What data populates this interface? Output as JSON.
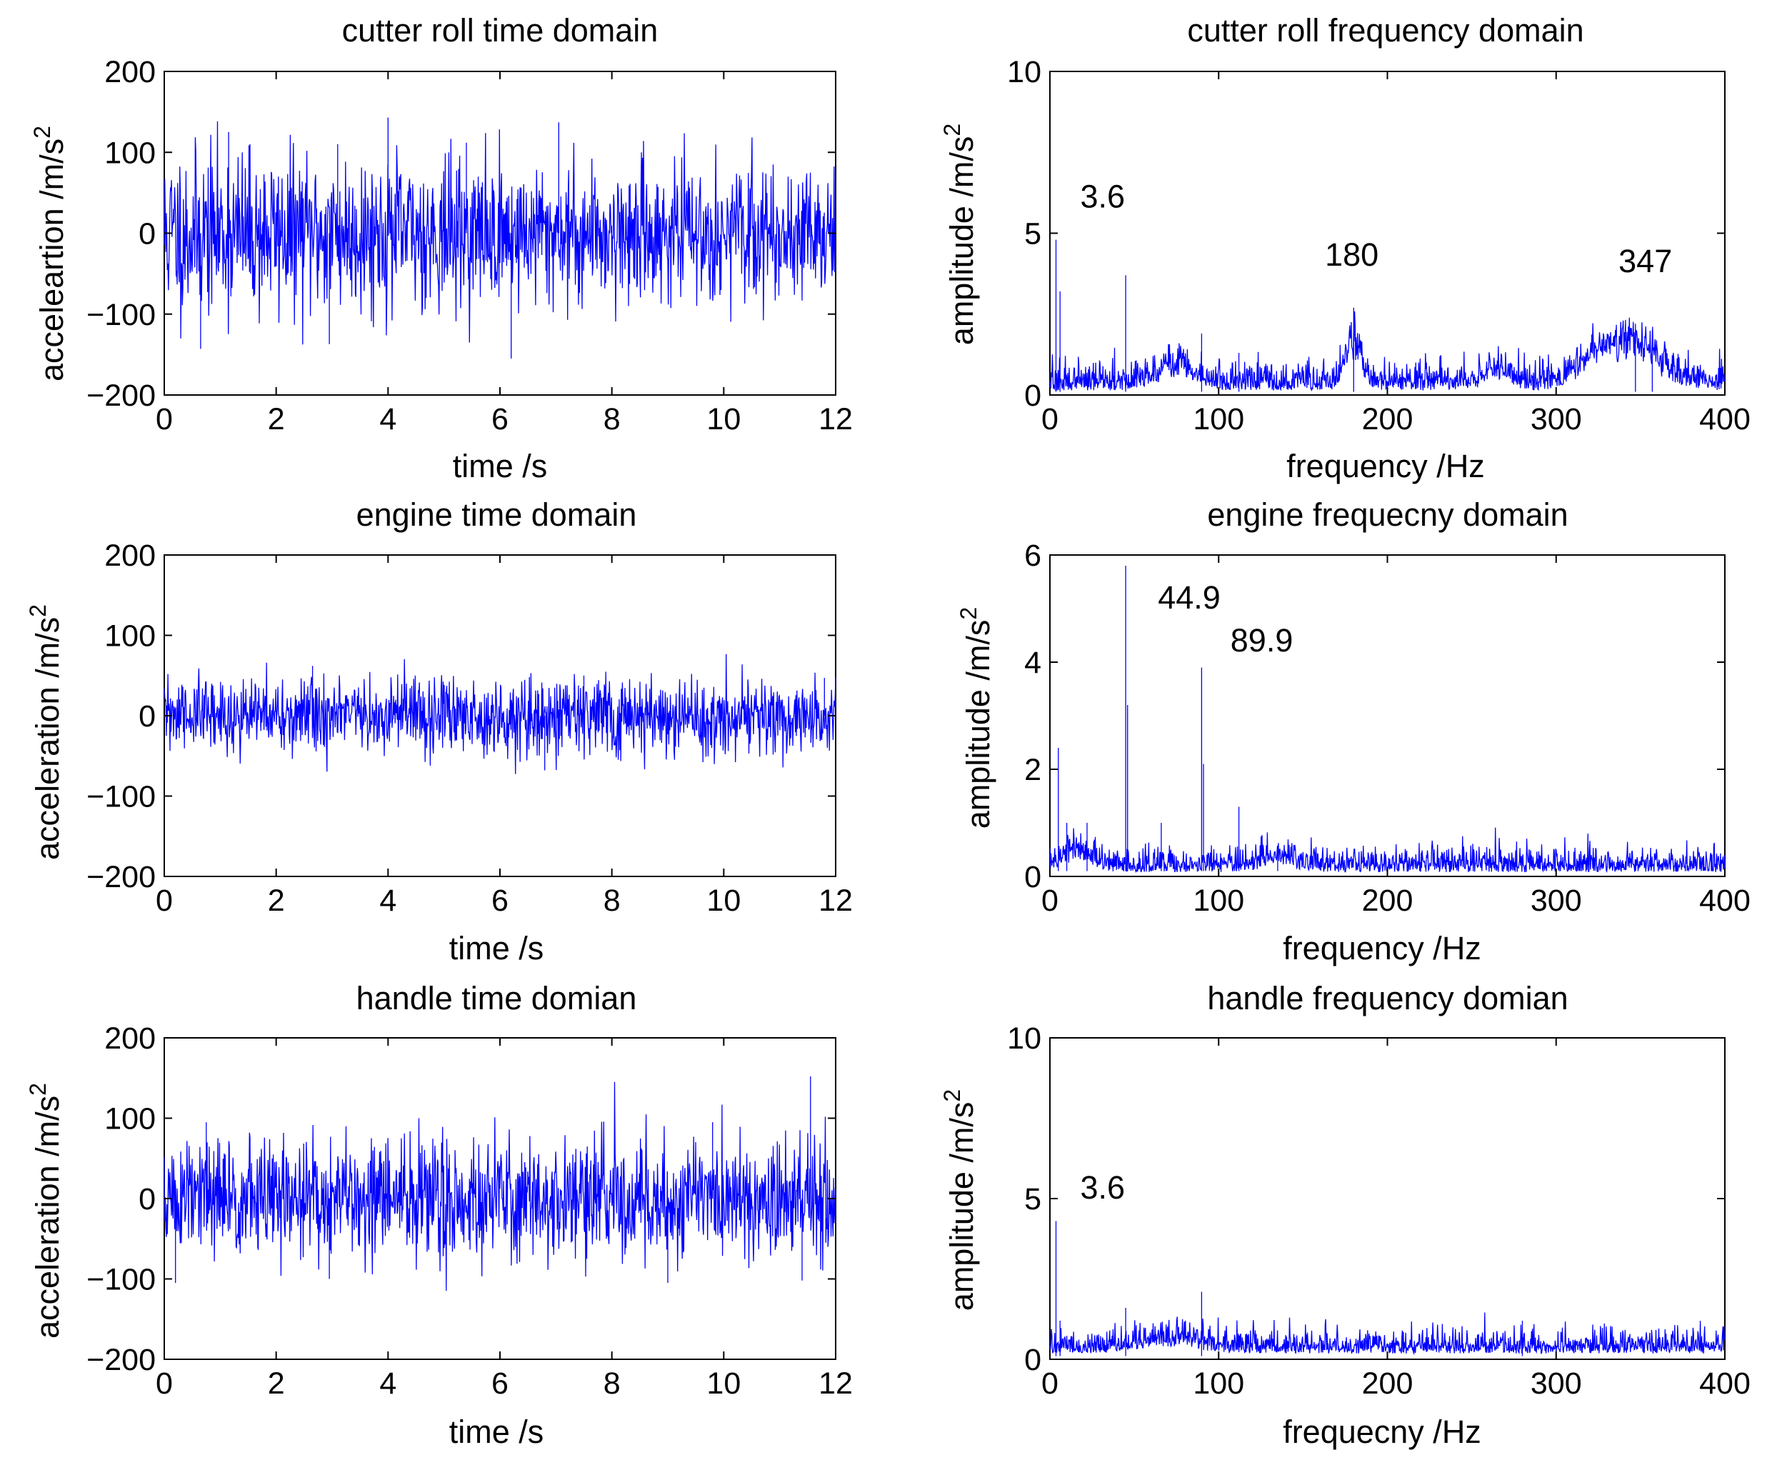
{
  "figure": {
    "background": "#ffffff",
    "series_color": "#0000ff"
  },
  "chart_data": [
    {
      "id": "cutter-roll-time",
      "type": "line",
      "title": "cutter roll time domain",
      "xlabel": "time /s",
      "ylabel": "accelear­tion /m/s",
      "ylabel_sup": "2",
      "xlim": [
        0,
        12
      ],
      "ylim": [
        -200,
        200
      ],
      "xticks": [
        0,
        2,
        4,
        6,
        8,
        10,
        12
      ],
      "yticks": [
        -200,
        -100,
        0,
        100,
        200
      ],
      "signal": {
        "kind": "time",
        "amp": 52,
        "decay": 0.05,
        "seed": 11
      },
      "spikes": [
        {
          "x": 0.65,
          "y": -143
        },
        {
          "x": 1.15,
          "y": 125
        },
        {
          "x": 2.95,
          "y": -137
        },
        {
          "x": 4.0,
          "y": 143
        },
        {
          "x": 6.2,
          "y": -155
        },
        {
          "x": 7.05,
          "y": 137
        },
        {
          "x": 3.1,
          "y": 110
        },
        {
          "x": 5.4,
          "y": 112
        }
      ],
      "annotations": []
    },
    {
      "id": "cutter-roll-freq",
      "type": "line",
      "title": "cutter roll frequency domain",
      "xlabel": "frequency /Hz",
      "ylabel": "amplitude /m/s",
      "ylabel_sup": "2",
      "xlim": [
        0,
        400
      ],
      "ylim": [
        0,
        10
      ],
      "xticks": [
        0,
        100,
        200,
        300,
        400
      ],
      "yticks": [
        0,
        5,
        10
      ],
      "signal": {
        "kind": "spectrum",
        "floor": 0.35,
        "noise": 0.4,
        "seed": 21
      },
      "bumps": [
        {
          "f": 75,
          "w": 14,
          "a": 0.6
        },
        {
          "f": 180,
          "w": 6,
          "a": 1.4
        },
        {
          "f": 345,
          "w": 22,
          "a": 1.2
        },
        {
          "f": 320,
          "w": 14,
          "a": 0.5
        },
        {
          "f": 265,
          "w": 10,
          "a": 0.4
        }
      ],
      "peaks": [
        {
          "f": 3.6,
          "a": 4.8
        },
        {
          "f": 6,
          "a": 3.2
        },
        {
          "f": 44.9,
          "a": 3.7
        },
        {
          "f": 89.9,
          "a": 1.9
        },
        {
          "f": 112,
          "a": 1.3
        },
        {
          "f": 180,
          "a": 2.7
        },
        {
          "f": 347,
          "a": 2.2
        },
        {
          "f": 357,
          "a": 2.0
        }
      ],
      "annotations": [
        {
          "text": "3.6",
          "x": 18,
          "y": 5.8
        },
        {
          "text": "180",
          "x": 163,
          "y": 4.0
        },
        {
          "text": "347",
          "x": 337,
          "y": 3.8
        }
      ]
    },
    {
      "id": "engine-time",
      "type": "line",
      "title": "engine time domain",
      "xlabel": "time /s",
      "ylabel": "acceleration /m/s",
      "ylabel_sup": "2",
      "xlim": [
        0,
        12
      ],
      "ylim": [
        -200,
        200
      ],
      "xticks": [
        0,
        2,
        4,
        6,
        8,
        10,
        12
      ],
      "yticks": [
        -200,
        -100,
        0,
        100,
        200
      ],
      "signal": {
        "kind": "time",
        "amp": 24,
        "decay": 0.0,
        "seed": 31
      },
      "spikes": [
        {
          "x": 2.65,
          "y": 62
        },
        {
          "x": 7.5,
          "y": 50
        },
        {
          "x": 6.8,
          "y": -68
        },
        {
          "x": 11.8,
          "y": 47
        }
      ],
      "annotations": []
    },
    {
      "id": "engine-freq",
      "type": "line",
      "title": "engine frequecny domain",
      "xlabel": "frequency /Hz",
      "ylabel": "amplitude /m/s",
      "ylabel_sup": "2",
      "xlim": [
        0,
        400
      ],
      "ylim": [
        0,
        6
      ],
      "xticks": [
        0,
        100,
        200,
        300,
        400
      ],
      "yticks": [
        0,
        2,
        4,
        6
      ],
      "signal": {
        "kind": "spectrum",
        "floor": 0.2,
        "noise": 0.22,
        "seed": 41
      },
      "bumps": [
        {
          "f": 15,
          "w": 12,
          "a": 0.3
        },
        {
          "f": 135,
          "w": 14,
          "a": 0.15
        }
      ],
      "peaks": [
        {
          "f": 5,
          "a": 2.4
        },
        {
          "f": 10,
          "a": 1.0
        },
        {
          "f": 22,
          "a": 1.0
        },
        {
          "f": 44.9,
          "a": 5.8
        },
        {
          "f": 46,
          "a": 3.2
        },
        {
          "f": 66,
          "a": 1.0
        },
        {
          "f": 89.9,
          "a": 3.9
        },
        {
          "f": 91,
          "a": 2.1
        },
        {
          "f": 112,
          "a": 1.3
        },
        {
          "f": 135,
          "a": 0.5
        }
      ],
      "annotations": [
        {
          "text": "44.9",
          "x": 64,
          "y": 5.0
        },
        {
          "text": "89.9",
          "x": 107,
          "y": 4.2
        }
      ]
    },
    {
      "id": "handle-time",
      "type": "line",
      "title": "handle time domian",
      "xlabel": "time /s",
      "ylabel": "acceleration /m/s",
      "ylabel_sup": "2",
      "xlim": [
        0,
        12
      ],
      "ylim": [
        -200,
        200
      ],
      "xticks": [
        0,
        2,
        4,
        6,
        8,
        10,
        12
      ],
      "yticks": [
        -200,
        -100,
        0,
        100,
        200
      ],
      "signal": {
        "kind": "time",
        "amp": 38,
        "decay": 0.0,
        "seed": 51
      },
      "spikes": [
        {
          "x": 0.2,
          "y": -105
        },
        {
          "x": 0.75,
          "y": 95
        },
        {
          "x": 2.95,
          "y": -100
        },
        {
          "x": 9.0,
          "y": -105
        },
        {
          "x": 9.8,
          "y": 95
        },
        {
          "x": 11.55,
          "y": 152
        },
        {
          "x": 11.4,
          "y": -102
        }
      ],
      "annotations": []
    },
    {
      "id": "handle-freq",
      "type": "line",
      "title": "handle frequency domian",
      "xlabel": "frequecny /Hz",
      "ylabel": "amplitude /m/s",
      "ylabel_sup": "2",
      "xlim": [
        0,
        400
      ],
      "ylim": [
        0,
        10
      ],
      "xticks": [
        0,
        100,
        200,
        300,
        400
      ],
      "yticks": [
        0,
        5,
        10
      ],
      "signal": {
        "kind": "spectrum",
        "floor": 0.45,
        "noise": 0.35,
        "seed": 61
      },
      "bumps": [
        {
          "f": 70,
          "w": 25,
          "a": 0.3
        }
      ],
      "peaks": [
        {
          "f": 3.6,
          "a": 4.3
        },
        {
          "f": 6,
          "a": 1.2
        },
        {
          "f": 44.9,
          "a": 1.6
        },
        {
          "f": 89.9,
          "a": 2.1
        },
        {
          "f": 280,
          "a": 1.2
        }
      ],
      "annotations": [
        {
          "text": "3.6",
          "x": 18,
          "y": 5.0
        }
      ]
    }
  ]
}
